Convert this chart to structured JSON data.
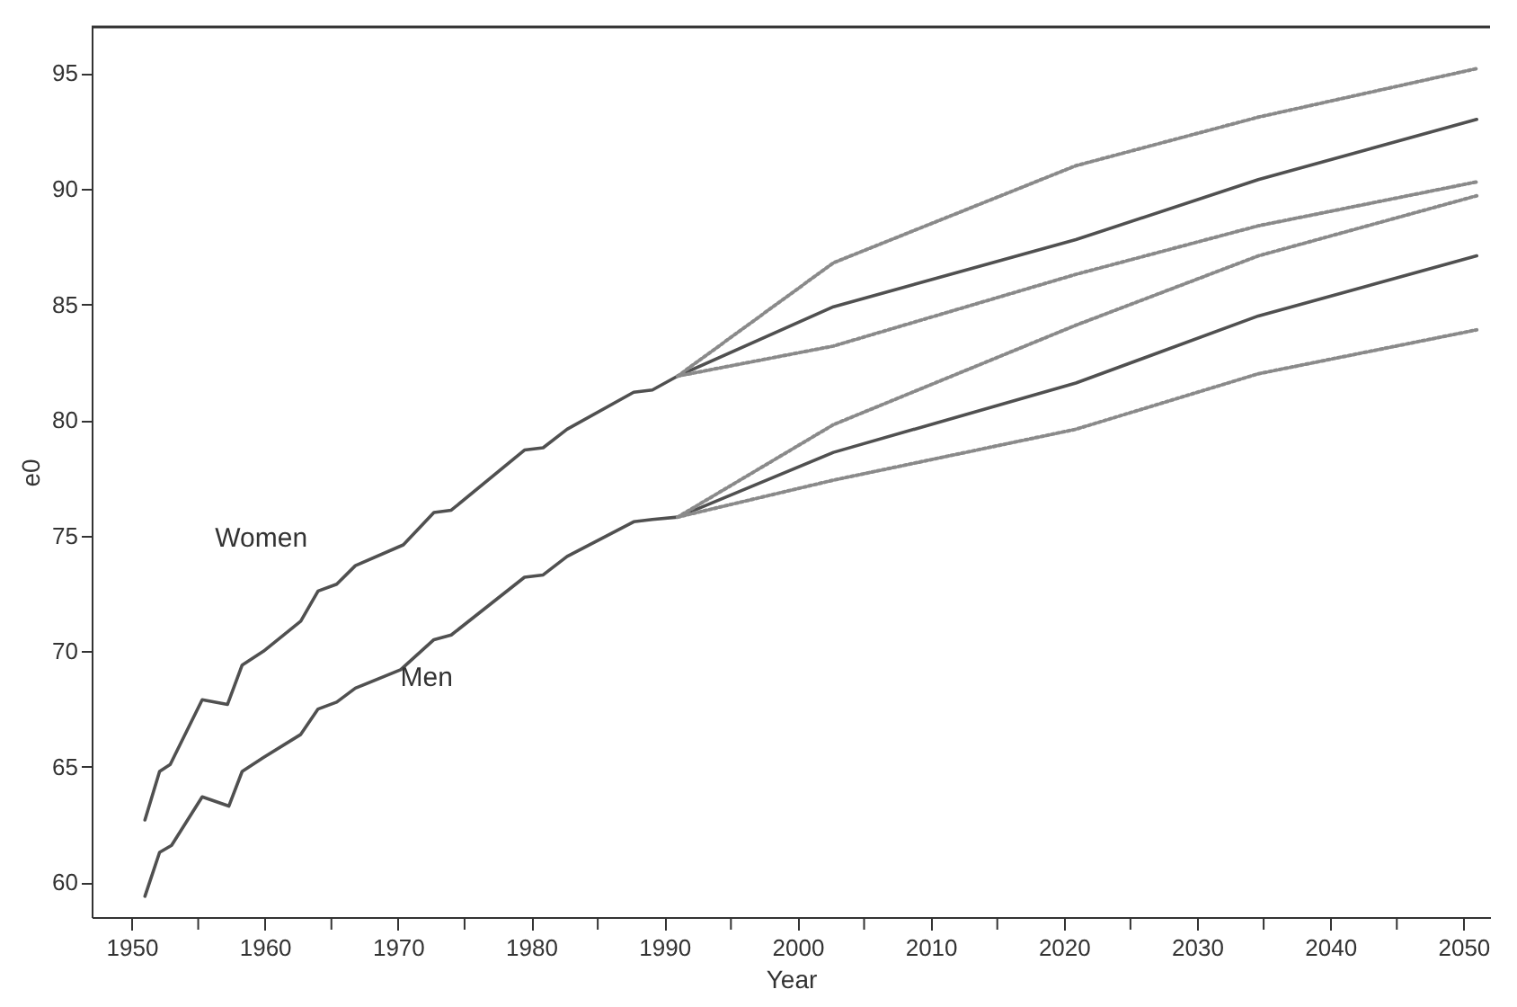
{
  "chart_data": {
    "type": "line",
    "xlabel": "Year",
    "ylabel": "e0",
    "xlim": [
      1947,
      2052
    ],
    "xticks": [
      1950,
      {
        "value": 1955,
        "label": null
      },
      1960,
      {
        "value": 1965,
        "label": null
      },
      1970,
      {
        "value": 1975,
        "label": null
      },
      1980,
      {
        "value": 1985,
        "label": null
      },
      1990,
      {
        "value": 1995,
        "label": null
      },
      2000,
      {
        "value": 2005,
        "label": null
      },
      2010,
      {
        "value": 2015,
        "label": null
      },
      2020,
      {
        "value": 2025,
        "label": null
      },
      2030,
      {
        "value": 2035,
        "label": null
      },
      2040,
      {
        "value": 2045,
        "label": null
      },
      2050
    ],
    "ylim": [
      58.5,
      97
    ],
    "yticks": [
      60,
      65,
      70,
      75,
      80,
      85,
      90,
      95
    ],
    "grid": false,
    "marker": "none",
    "series": [
      {
        "name": "Women",
        "color": "#505050",
        "line_style": "solid",
        "x": [
          1951,
          1952.1,
          1952.9,
          1955.3,
          1957.2,
          1958.3,
          1959.9,
          1962.7,
          1964,
          1965.4,
          1966.8,
          1970.4,
          1972.7,
          1974,
          1979.5,
          1980.9,
          1982.7,
          1987.7,
          1989.1,
          1991,
          2002.7,
          2020.9,
          2034.6,
          2051
        ],
        "values": [
          62.7,
          64.8,
          65.1,
          67.9,
          67.7,
          69.4,
          70,
          71.3,
          72.6,
          72.9,
          73.7,
          74.6,
          76,
          76.1,
          78.7,
          78.8,
          79.6,
          81.2,
          81.3,
          81.9,
          84.9,
          87.8,
          90.4,
          93
        ]
      },
      {
        "name": "Men",
        "color": "#505050",
        "line_style": "solid",
        "x": [
          1951,
          1952.1,
          1953,
          1955.3,
          1957.3,
          1958.3,
          1959.9,
          1962.7,
          1964,
          1965.4,
          1966.8,
          1970.2,
          1972.7,
          1974,
          1979.5,
          1980.9,
          1982.7,
          1987.7,
          1989.1,
          1991,
          2002.7,
          2020.9,
          2034.6,
          2051
        ],
        "values": [
          59.4,
          61.3,
          61.6,
          63.7,
          63.3,
          64.8,
          65.4,
          66.4,
          67.5,
          67.8,
          68.4,
          69.2,
          70.5,
          70.7,
          73.2,
          73.3,
          74.1,
          75.6,
          75.7,
          75.8,
          78.6,
          81.6,
          84.5,
          87.1
        ]
      },
      {
        "color": "#8a8a8a",
        "line_style": "dotted",
        "x": [
          1991,
          2002.7,
          2020.9,
          2034.6,
          2051
        ],
        "values": [
          81.9,
          86.8,
          91,
          93.1,
          95.2
        ]
      },
      {
        "color": "#8a8a8a",
        "line_style": "dotted",
        "x": [
          1991,
          2002.7,
          2020.9,
          2034.6,
          2051
        ],
        "values": [
          81.9,
          83.2,
          86.3,
          88.4,
          90.3
        ]
      },
      {
        "color": "#8a8a8a",
        "line_style": "dotted",
        "x": [
          1991,
          2002.7,
          2020.9,
          2034.6,
          2051
        ],
        "values": [
          75.8,
          79.8,
          84.1,
          87.1,
          89.7
        ]
      },
      {
        "color": "#8a8a8a",
        "line_style": "dotted",
        "x": [
          1991,
          2002.7,
          2020.9,
          2034.6,
          2051
        ],
        "values": [
          75.8,
          77.4,
          79.6,
          82,
          83.9
        ]
      }
    ]
  }
}
